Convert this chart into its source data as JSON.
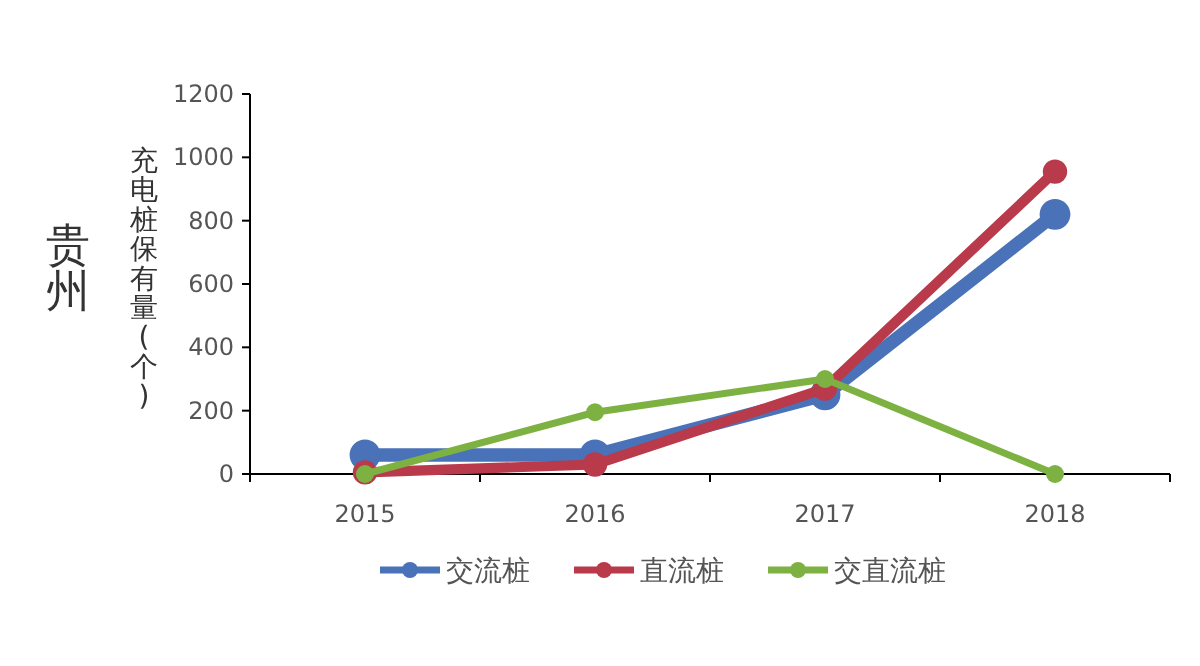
{
  "chart_data": {
    "type": "line",
    "title": "贵州",
    "ylabel": "充电桩保有量(个)",
    "categories": [
      "2015",
      "2016",
      "2017",
      "2018"
    ],
    "series": [
      {
        "name": "交流桩",
        "color": "#4a72b8",
        "values": [
          60,
          60,
          250,
          820
        ]
      },
      {
        "name": "直流桩",
        "color": "#b83a4b",
        "values": [
          5,
          30,
          270,
          955
        ]
      },
      {
        "name": "交直流桩",
        "color": "#7db243",
        "values": [
          0,
          195,
          300,
          0
        ]
      }
    ],
    "ylim": [
      0,
      1200
    ],
    "yticks": [
      0,
      200,
      400,
      600,
      800,
      1000,
      1200
    ],
    "grid": false,
    "legend": "bottom",
    "marker": "circle",
    "line_style": "solid"
  }
}
